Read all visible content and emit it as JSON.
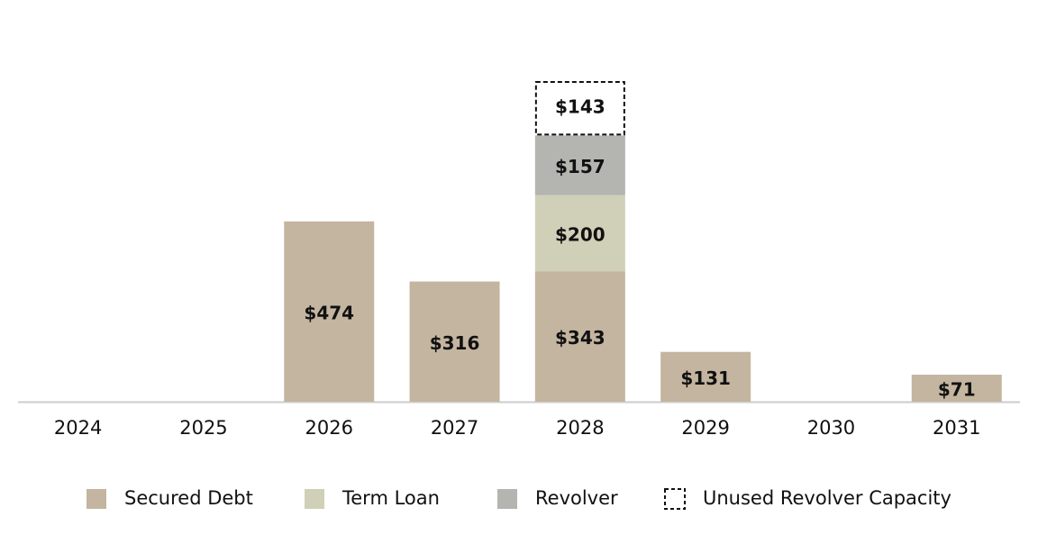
{
  "chart_data": {
    "type": "stacked-bar",
    "categories": [
      "2024",
      "2025",
      "2026",
      "2027",
      "2028",
      "2029",
      "2030",
      "2031"
    ],
    "series": [
      {
        "name": "Secured Debt",
        "color": "#c4b5a0",
        "values": [
          null,
          null,
          474,
          316,
          343,
          131,
          null,
          71
        ],
        "value_labels": [
          null,
          null,
          "$474",
          "$316",
          "$343",
          "$131",
          null,
          "$71"
        ]
      },
      {
        "name": "Term Loan",
        "color": "#d0d0b8",
        "values": [
          null,
          null,
          null,
          null,
          200,
          null,
          null,
          null
        ],
        "value_labels": [
          null,
          null,
          null,
          null,
          "$200",
          null,
          null,
          null
        ]
      },
      {
        "name": "Revolver",
        "color": "#b4b5b0",
        "values": [
          null,
          null,
          null,
          null,
          157,
          null,
          null,
          null
        ],
        "value_labels": [
          null,
          null,
          null,
          null,
          "$157",
          null,
          null,
          null
        ]
      },
      {
        "name": "Unused Revolver Capacity",
        "color": "#ffffff",
        "dashed": true,
        "values": [
          null,
          null,
          null,
          null,
          143,
          null,
          null,
          null
        ],
        "value_labels": [
          null,
          null,
          null,
          null,
          "$143",
          null,
          null,
          null
        ]
      }
    ],
    "legend": "bottom"
  }
}
